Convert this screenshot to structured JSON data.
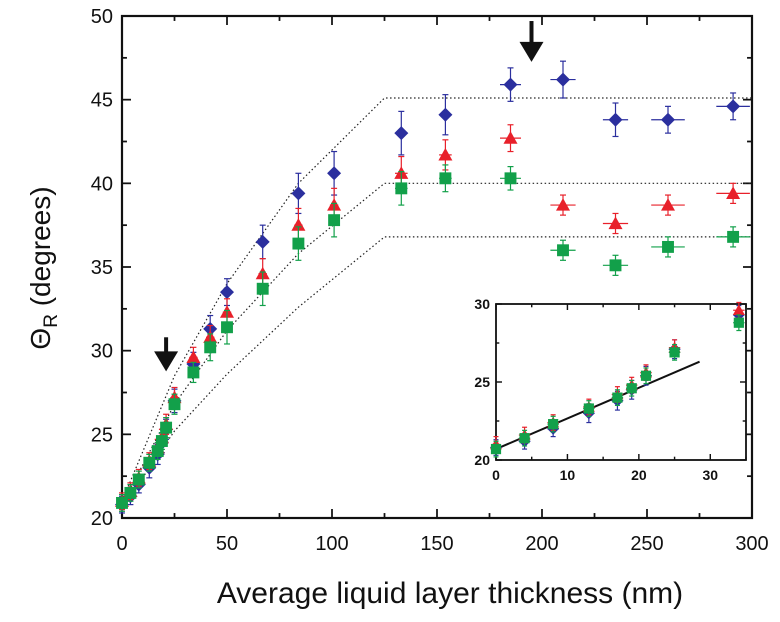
{
  "chart_data": [
    {
      "type": "scatter",
      "title": "",
      "xlabel": "Average liquid layer thickness (nm)",
      "ylabel_symbol": "Θ",
      "ylabel_sub": "R",
      "ylabel_rest": " (degrees)",
      "xlim": [
        0,
        300
      ],
      "ylim": [
        20,
        50
      ],
      "xticks": [
        0,
        50,
        100,
        150,
        200,
        250,
        300
      ],
      "yticks": [
        20,
        25,
        30,
        35,
        40,
        45,
        50
      ],
      "grid": false,
      "legend": "none",
      "series": [
        {
          "marker": "diamond",
          "color": "#2b2f9e",
          "points": [
            {
              "x": 0,
              "y": 20.8,
              "ey": 0.5,
              "ex": 2
            },
            {
              "x": 4,
              "y": 21.3,
              "ey": 0.5,
              "ex": 2
            },
            {
              "x": 8,
              "y": 22.0,
              "ey": 0.5,
              "ex": 2
            },
            {
              "x": 13,
              "y": 23.0,
              "ey": 0.6,
              "ex": 2
            },
            {
              "x": 17,
              "y": 23.8,
              "ey": 0.6,
              "ex": 2
            },
            {
              "x": 19,
              "y": 24.5,
              "ey": 0.6,
              "ex": 2
            },
            {
              "x": 21,
              "y": 25.3,
              "ey": 0.6,
              "ex": 2
            },
            {
              "x": 25,
              "y": 27.0,
              "ey": 0.7,
              "ex": 2
            },
            {
              "x": 34,
              "y": 29.2,
              "ey": 0.7,
              "ex": 2
            },
            {
              "x": 42,
              "y": 31.3,
              "ey": 0.8,
              "ex": 2
            },
            {
              "x": 50,
              "y": 33.5,
              "ey": 0.8,
              "ex": 2
            },
            {
              "x": 67,
              "y": 36.5,
              "ey": 1.0,
              "ex": 2
            },
            {
              "x": 84,
              "y": 39.4,
              "ey": 1.2,
              "ex": 2
            },
            {
              "x": 101,
              "y": 40.6,
              "ey": 1.3,
              "ex": 2
            },
            {
              "x": 133,
              "y": 43.0,
              "ey": 1.3,
              "ex": 3
            },
            {
              "x": 154,
              "y": 44.1,
              "ey": 1.2,
              "ex": 3
            },
            {
              "x": 185,
              "y": 45.9,
              "ey": 1.0,
              "ex": 5
            },
            {
              "x": 210,
              "y": 46.2,
              "ey": 1.1,
              "ex": 6
            },
            {
              "x": 235,
              "y": 43.8,
              "ey": 1.0,
              "ex": 6
            },
            {
              "x": 260,
              "y": 43.8,
              "ey": 0.8,
              "ex": 8
            },
            {
              "x": 291,
              "y": 44.6,
              "ey": 0.8,
              "ex": 8
            }
          ]
        },
        {
          "marker": "triangle",
          "color": "#e8202a",
          "points": [
            {
              "x": 0,
              "y": 21.0,
              "ey": 0.5,
              "ex": 2
            },
            {
              "x": 4,
              "y": 21.6,
              "ey": 0.5,
              "ex": 2
            },
            {
              "x": 8,
              "y": 22.4,
              "ey": 0.5,
              "ex": 2
            },
            {
              "x": 13,
              "y": 23.4,
              "ey": 0.5,
              "ex": 2
            },
            {
              "x": 17,
              "y": 24.2,
              "ey": 0.5,
              "ex": 2
            },
            {
              "x": 19,
              "y": 24.8,
              "ey": 0.5,
              "ex": 2
            },
            {
              "x": 21,
              "y": 25.6,
              "ey": 0.6,
              "ex": 2
            },
            {
              "x": 25,
              "y": 27.2,
              "ey": 0.6,
              "ex": 2
            },
            {
              "x": 34,
              "y": 29.6,
              "ey": 0.6,
              "ex": 2
            },
            {
              "x": 42,
              "y": 30.8,
              "ey": 0.7,
              "ex": 2
            },
            {
              "x": 50,
              "y": 32.3,
              "ey": 0.8,
              "ex": 2
            },
            {
              "x": 67,
              "y": 34.6,
              "ey": 0.9,
              "ex": 2
            },
            {
              "x": 84,
              "y": 37.5,
              "ey": 1.0,
              "ex": 2
            },
            {
              "x": 101,
              "y": 38.7,
              "ey": 1.0,
              "ex": 2
            },
            {
              "x": 133,
              "y": 40.6,
              "ey": 1.0,
              "ex": 3
            },
            {
              "x": 154,
              "y": 41.7,
              "ey": 0.9,
              "ex": 3
            },
            {
              "x": 185,
              "y": 42.7,
              "ey": 0.8,
              "ex": 5
            },
            {
              "x": 210,
              "y": 38.7,
              "ey": 0.6,
              "ex": 6
            },
            {
              "x": 235,
              "y": 37.6,
              "ey": 0.6,
              "ex": 6
            },
            {
              "x": 260,
              "y": 38.7,
              "ey": 0.6,
              "ex": 8
            },
            {
              "x": 291,
              "y": 39.4,
              "ey": 0.6,
              "ex": 8
            }
          ]
        },
        {
          "marker": "square",
          "color": "#12a04a",
          "points": [
            {
              "x": 0,
              "y": 20.9,
              "ey": 0.5,
              "ex": 2
            },
            {
              "x": 4,
              "y": 21.5,
              "ey": 0.5,
              "ex": 2
            },
            {
              "x": 8,
              "y": 22.3,
              "ey": 0.5,
              "ex": 2
            },
            {
              "x": 13,
              "y": 23.3,
              "ey": 0.5,
              "ex": 2
            },
            {
              "x": 17,
              "y": 24.0,
              "ey": 0.5,
              "ex": 2
            },
            {
              "x": 19,
              "y": 24.6,
              "ey": 0.5,
              "ex": 2
            },
            {
              "x": 21,
              "y": 25.4,
              "ey": 0.6,
              "ex": 2
            },
            {
              "x": 25,
              "y": 26.8,
              "ey": 0.6,
              "ex": 2
            },
            {
              "x": 34,
              "y": 28.7,
              "ey": 0.6,
              "ex": 2
            },
            {
              "x": 42,
              "y": 30.2,
              "ey": 0.8,
              "ex": 2
            },
            {
              "x": 50,
              "y": 31.4,
              "ey": 1.0,
              "ex": 2
            },
            {
              "x": 67,
              "y": 33.7,
              "ey": 1.0,
              "ex": 2
            },
            {
              "x": 84,
              "y": 36.4,
              "ey": 1.0,
              "ex": 2
            },
            {
              "x": 101,
              "y": 37.8,
              "ey": 1.0,
              "ex": 2
            },
            {
              "x": 133,
              "y": 39.7,
              "ey": 1.0,
              "ex": 3
            },
            {
              "x": 154,
              "y": 40.3,
              "ey": 0.8,
              "ex": 3
            },
            {
              "x": 185,
              "y": 40.3,
              "ey": 0.7,
              "ex": 5
            },
            {
              "x": 210,
              "y": 36.0,
              "ey": 0.6,
              "ex": 6
            },
            {
              "x": 235,
              "y": 35.1,
              "ey": 0.6,
              "ex": 6
            },
            {
              "x": 260,
              "y": 36.2,
              "ey": 0.6,
              "ex": 8
            },
            {
              "x": 291,
              "y": 36.8,
              "ey": 0.6,
              "ex": 8
            }
          ]
        }
      ],
      "guide_lines": [
        {
          "style": "dotted",
          "points": [
            [
              0,
              21.0
            ],
            [
              25,
              28.5
            ],
            [
              50,
              34.0
            ],
            [
              84,
              40.0
            ],
            [
              125,
              45.1
            ],
            [
              300,
              45.1
            ]
          ]
        },
        {
          "style": "dotted",
          "points": [
            [
              0,
              20.8
            ],
            [
              25,
              26.8
            ],
            [
              50,
              31.2
            ],
            [
              84,
              35.8
            ],
            [
              125,
              40.0
            ],
            [
              300,
              40.0
            ]
          ]
        },
        {
          "style": "dotted",
          "points": [
            [
              0,
              20.6
            ],
            [
              25,
              25.2
            ],
            [
              50,
              28.6
            ],
            [
              84,
              32.6
            ],
            [
              125,
              36.8
            ],
            [
              300,
              36.8
            ]
          ]
        }
      ],
      "arrows": [
        {
          "x": 21,
          "y_tail": 30.8,
          "y_head": 29.0
        },
        {
          "x": 195,
          "y_tail": 49.7,
          "y_head": 47.5
        }
      ]
    },
    {
      "type": "scatter",
      "role": "inset",
      "xlim": [
        0,
        35
      ],
      "ylim": [
        20,
        30
      ],
      "xticks": [
        0,
        10,
        20,
        30
      ],
      "yticks": [
        20,
        25,
        30
      ],
      "fit_line": {
        "x": [
          0,
          28.5
        ],
        "y": [
          20.7,
          26.3
        ]
      },
      "series": [
        {
          "marker": "diamond",
          "color": "#2b2f9e",
          "points": [
            {
              "x": 0,
              "y": 20.8,
              "ey": 0.5,
              "ex": 0.6
            },
            {
              "x": 4,
              "y": 21.2,
              "ey": 0.5,
              "ex": 0.8
            },
            {
              "x": 8,
              "y": 22.0,
              "ey": 0.5,
              "ex": 0.8
            },
            {
              "x": 13,
              "y": 23.0,
              "ey": 0.6,
              "ex": 0.8
            },
            {
              "x": 17,
              "y": 23.8,
              "ey": 0.6,
              "ex": 0.8
            },
            {
              "x": 19,
              "y": 24.5,
              "ey": 0.6,
              "ex": 0.8
            },
            {
              "x": 21,
              "y": 25.4,
              "ey": 0.6,
              "ex": 0.8
            },
            {
              "x": 25,
              "y": 27.1,
              "ey": 0.6,
              "ex": 0.8
            },
            {
              "x": 34,
              "y": 29.3,
              "ey": 0.6,
              "ex": 0.8
            }
          ]
        },
        {
          "marker": "triangle",
          "color": "#e8202a",
          "points": [
            {
              "x": 0,
              "y": 21.0,
              "ey": 0.5,
              "ex": 0.6
            },
            {
              "x": 4,
              "y": 21.6,
              "ey": 0.5,
              "ex": 0.8
            },
            {
              "x": 8,
              "y": 22.4,
              "ey": 0.5,
              "ex": 0.8
            },
            {
              "x": 13,
              "y": 23.4,
              "ey": 0.5,
              "ex": 0.8
            },
            {
              "x": 17,
              "y": 24.2,
              "ey": 0.5,
              "ex": 0.8
            },
            {
              "x": 19,
              "y": 24.8,
              "ey": 0.5,
              "ex": 0.8
            },
            {
              "x": 21,
              "y": 25.6,
              "ey": 0.5,
              "ex": 0.8
            },
            {
              "x": 25,
              "y": 27.2,
              "ey": 0.5,
              "ex": 0.8
            },
            {
              "x": 34,
              "y": 29.6,
              "ey": 0.5,
              "ex": 0.8
            }
          ]
        },
        {
          "marker": "square",
          "color": "#12a04a",
          "points": [
            {
              "x": 0,
              "y": 20.7,
              "ey": 0.5,
              "ex": 0.6
            },
            {
              "x": 4,
              "y": 21.4,
              "ey": 0.5,
              "ex": 0.8
            },
            {
              "x": 8,
              "y": 22.3,
              "ey": 0.5,
              "ex": 0.8
            },
            {
              "x": 13,
              "y": 23.3,
              "ey": 0.5,
              "ex": 0.8
            },
            {
              "x": 17,
              "y": 24.0,
              "ey": 0.5,
              "ex": 0.8
            },
            {
              "x": 19,
              "y": 24.6,
              "ey": 0.5,
              "ex": 0.8
            },
            {
              "x": 21,
              "y": 25.4,
              "ey": 0.5,
              "ex": 0.8
            },
            {
              "x": 25,
              "y": 26.9,
              "ey": 0.5,
              "ex": 0.8
            },
            {
              "x": 34,
              "y": 28.8,
              "ey": 0.5,
              "ex": 0.8
            }
          ]
        }
      ]
    }
  ]
}
